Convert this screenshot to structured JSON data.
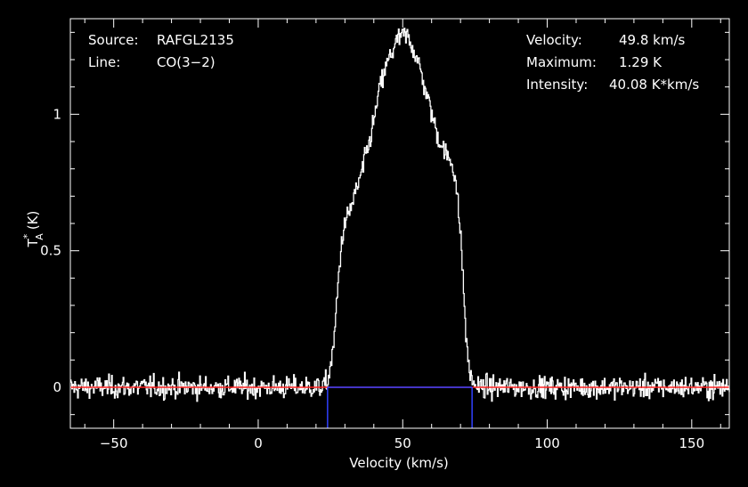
{
  "chart_data": {
    "type": "line",
    "title": "",
    "xlabel": "Velocity (km/s)",
    "ylabel": "T",
    "ylabel_sub": "A",
    "ylabel_sup": "*",
    "ylabel_unit": "(K)",
    "xlim": [
      -65,
      163
    ],
    "ylim": [
      -0.15,
      1.35
    ],
    "x_ticks": [
      -50,
      0,
      50,
      100,
      150
    ],
    "x_tick_labels": [
      "−50",
      "0",
      "50",
      "100",
      "150"
    ],
    "y_ticks": [
      0,
      0.5,
      1
    ],
    "y_tick_labels": [
      "0",
      "0.5",
      "1"
    ],
    "grid": false,
    "source_label": "Source:",
    "source_value": "RAFGL2135",
    "line_label": "Line:",
    "line_value": "CO(3−2)",
    "velocity_label": "Velocity:",
    "velocity_value": "49.8 km/s",
    "maximum_label": "Maximum:",
    "maximum_value": "1.29 K",
    "intensity_label": "Intensity:",
    "intensity_value": "40.08 K*km/s",
    "baseline": 0,
    "line_window": [
      24,
      74
    ],
    "noise_rms": 0.02,
    "spectrum_profile": {
      "x": [
        -65,
        22,
        24,
        26,
        27,
        28,
        29,
        30,
        32,
        35,
        38,
        40,
        42,
        45,
        48,
        50,
        52,
        55,
        58,
        60,
        62,
        65,
        67,
        68,
        70,
        71,
        72,
        73,
        74,
        76,
        163
      ],
      "y": [
        0,
        0,
        0.02,
        0.15,
        0.3,
        0.45,
        0.55,
        0.6,
        0.66,
        0.76,
        0.88,
        0.98,
        1.1,
        1.2,
        1.27,
        1.29,
        1.28,
        1.2,
        1.08,
        1.0,
        0.92,
        0.85,
        0.82,
        0.78,
        0.55,
        0.35,
        0.15,
        0.06,
        0.02,
        0,
        0
      ]
    }
  },
  "colors": {
    "background": "#000000",
    "axes": "#ffffff",
    "spectrum": "#ffffff",
    "baseline": "#ff2020",
    "window": "#3040ff"
  }
}
